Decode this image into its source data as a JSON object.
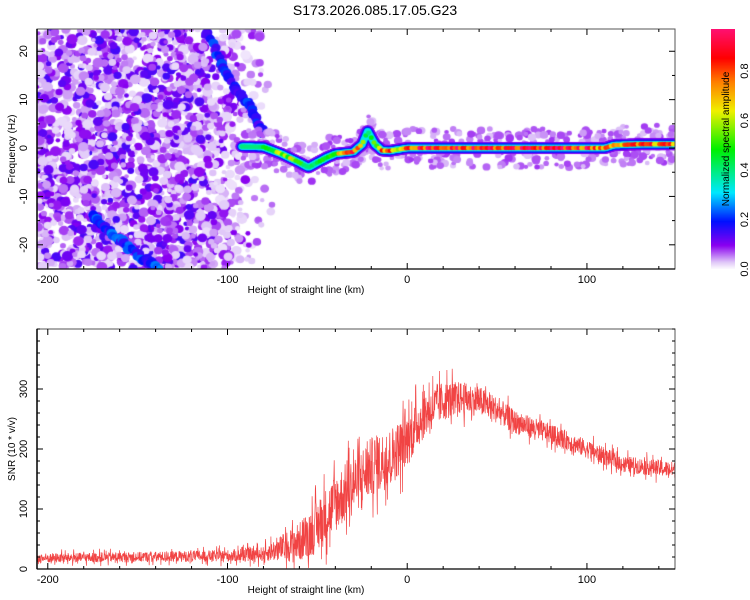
{
  "title": "S173.2026.085.17.05.G23",
  "chart_data": [
    {
      "type": "heatmap",
      "name": "spectrogram",
      "xlabel": "Height of straight line (km)",
      "ylabel": "Frequency (Hz)",
      "xlim": [
        -206,
        149
      ],
      "ylim": [
        -25,
        24.6
      ],
      "xticks": [
        -200,
        -100,
        0,
        100
      ],
      "yticks": [
        -20,
        -10,
        0,
        10,
        20
      ],
      "grid": false,
      "colorbar": {
        "label": "Normalized spectral amplitude",
        "range": [
          0,
          0.97
        ],
        "ticks": [
          "0.0",
          "0.2",
          "0.4",
          "0.6",
          "0.8"
        ],
        "tick_values": [
          0,
          0.2,
          0.4,
          0.6,
          0.8
        ],
        "colors": [
          "#ffffff",
          "#e0c8f8",
          "#8a00f0",
          "#0010ff",
          "#00e8ff",
          "#00f000",
          "#f0f000",
          "#ff8000",
          "#ff0000",
          "#ff1070"
        ]
      },
      "noise_region": {
        "x_range": [
          -206,
          -85
        ],
        "amplitude_range": [
          0.02,
          0.15
        ]
      },
      "ridge": {
        "x": [
          -92,
          -80,
          -70,
          -60,
          -55,
          -50,
          -45,
          -40,
          -35,
          -30,
          -25,
          -22,
          -18,
          -14,
          -10,
          -5,
          0,
          20,
          40,
          60,
          80,
          100,
          110,
          115,
          130,
          149
        ],
        "y": [
          0.3,
          0.2,
          -1.2,
          -3.0,
          -4.0,
          -3.0,
          -2.0,
          -1.2,
          -1.0,
          -0.8,
          0.8,
          3.5,
          0.8,
          -0.5,
          -0.6,
          -0.3,
          0.0,
          0.0,
          0.0,
          0.0,
          0.0,
          0.0,
          0.0,
          0.6,
          0.8,
          0.8
        ],
        "amplitude": [
          0.25,
          0.45,
          0.6,
          0.65,
          0.4,
          0.5,
          0.6,
          0.6,
          0.75,
          0.85,
          0.7,
          0.3,
          0.6,
          0.8,
          0.9,
          0.7,
          0.9,
          0.95,
          0.95,
          0.95,
          0.95,
          0.9,
          0.8,
          0.7,
          0.85,
          0.8
        ]
      },
      "diagonal_tracks": [
        {
          "x": [
            -112,
            -97,
            -88,
            -80
          ],
          "y": [
            24,
            13,
            9,
            3
          ],
          "amplitude": 0.18
        },
        {
          "x": [
            -175,
            -160,
            -150,
            -138
          ],
          "y": [
            -14,
            -19,
            -22,
            -25
          ],
          "amplitude": 0.2
        }
      ]
    },
    {
      "type": "line",
      "name": "snr",
      "xlabel": "Height of straight line (km)",
      "ylabel": "SNR (10 * v/v)",
      "xlim": [
        -206,
        149
      ],
      "ylim": [
        0,
        400
      ],
      "xticks": [
        -200,
        -100,
        0,
        100
      ],
      "yticks": [
        0,
        100,
        200,
        300
      ],
      "grid": false,
      "color": "#f03030",
      "envelope": {
        "x": [
          -206,
          -150,
          -100,
          -80,
          -70,
          -60,
          -50,
          -40,
          -30,
          -20,
          -10,
          0,
          10,
          20,
          30,
          40,
          50,
          60,
          80,
          100,
          120,
          149
        ],
        "mean": [
          18,
          20,
          22,
          25,
          35,
          45,
          70,
          110,
          140,
          170,
          185,
          215,
          260,
          280,
          285,
          280,
          265,
          245,
          225,
          200,
          175,
          165
        ],
        "spread": [
          15,
          15,
          18,
          22,
          40,
          60,
          80,
          90,
          90,
          90,
          90,
          80,
          70,
          60,
          50,
          45,
          40,
          35,
          30,
          28,
          25,
          25
        ]
      }
    }
  ]
}
